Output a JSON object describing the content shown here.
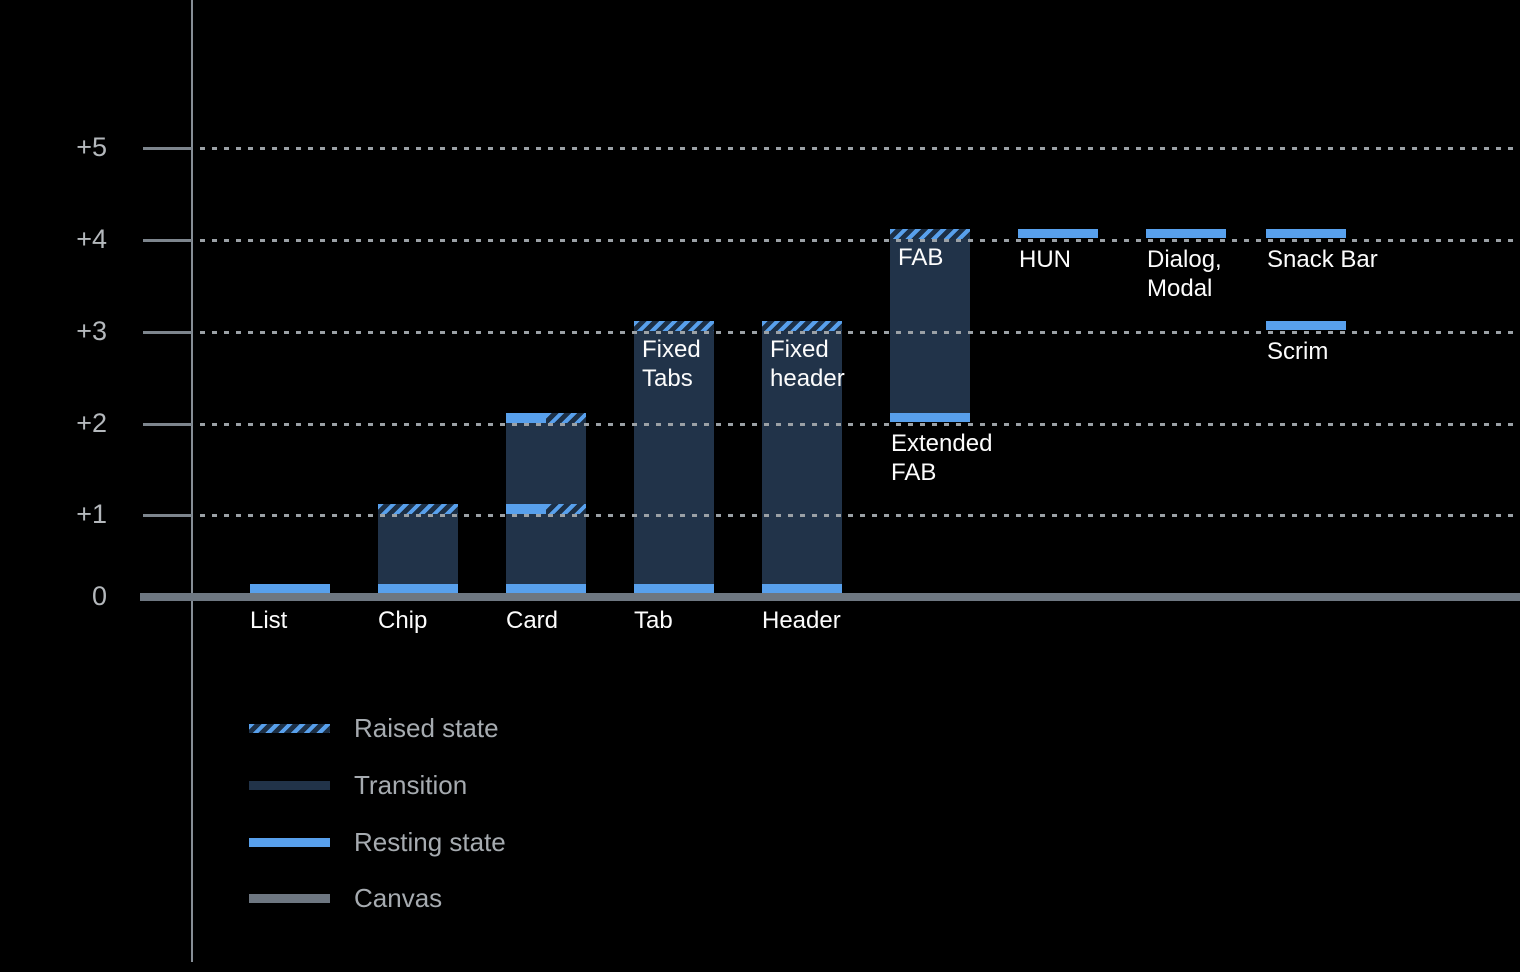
{
  "colors": {
    "background": "#000000",
    "resting": "#58a0ec",
    "transition": "#213349",
    "hatch_dark": "#1c2f45",
    "canvas": "#6e7781",
    "gridline": "#9ba1a6",
    "axis_line": "#868e96",
    "tick": "#7d858d",
    "axis_label_text": "#b4b8bc",
    "legend_text": "#a6abb0",
    "bar_label_text": "#fcfcfc"
  },
  "chart_data": {
    "type": "bar",
    "y_axis": {
      "tick_labels": [
        "+5",
        "+4",
        "+3",
        "+2",
        "+1",
        "0"
      ],
      "levels": [
        5,
        4,
        3,
        2,
        1,
        0
      ],
      "range": [
        0,
        5.6
      ],
      "gridlines": "dotted-horizontal",
      "baseline_style": "solid-canvas-line"
    },
    "legend": {
      "position": "bottom-left",
      "entries": [
        {
          "key": "raised",
          "label": "Raised state"
        },
        {
          "key": "transition",
          "label": "Transition"
        },
        {
          "key": "resting",
          "label": "Resting state"
        },
        {
          "key": "canvas",
          "label": "Canvas"
        }
      ]
    },
    "components": [
      {
        "name": "List",
        "column": 0,
        "resting_levels": [
          0
        ],
        "raised_level": null,
        "parts": [
          [
            "rest-ground"
          ]
        ],
        "labels": [
          {
            "text": "List",
            "placement": "axis"
          }
        ]
      },
      {
        "name": "Chip",
        "column": 1,
        "resting_levels": [
          0
        ],
        "raised_level": 1,
        "parts": [
          [
            "hatch",
            1
          ],
          [
            "dark",
            1,
            0
          ],
          [
            "rest-ground"
          ]
        ],
        "labels": [
          {
            "text": "Chip",
            "placement": "axis"
          }
        ]
      },
      {
        "name": "Card",
        "column": 2,
        "resting_levels": [
          0,
          1,
          2
        ],
        "raised_level": 2,
        "parts": [
          [
            "half",
            2
          ],
          [
            "dark",
            2,
            1
          ],
          [
            "half",
            1
          ],
          [
            "dark",
            1,
            0
          ],
          [
            "rest-ground"
          ]
        ],
        "labels": [
          {
            "text": "Card",
            "placement": "axis"
          }
        ]
      },
      {
        "name": "Tab",
        "column": 3,
        "resting_levels": [
          0
        ],
        "raised_level": 3,
        "parts": [
          [
            "hatch",
            3
          ],
          [
            "dark",
            3,
            0
          ],
          [
            "rest-ground"
          ]
        ],
        "labels": [
          {
            "text": "Tab",
            "placement": "axis"
          },
          {
            "text": "Fixed\nTabs",
            "placement": "inside",
            "level": 3
          }
        ]
      },
      {
        "name": "Header",
        "column": 4,
        "resting_levels": [
          0
        ],
        "raised_level": 3,
        "parts": [
          [
            "hatch",
            3
          ],
          [
            "dark",
            3,
            0
          ],
          [
            "rest-ground"
          ]
        ],
        "labels": [
          {
            "text": "Header",
            "placement": "axis"
          },
          {
            "text": "Fixed\nheader",
            "placement": "inside",
            "level": 3
          }
        ]
      },
      {
        "name": "Extended FAB",
        "column": 5,
        "resting_levels": [
          2
        ],
        "raised_level": 4,
        "parts": [
          [
            "hatch",
            4
          ],
          [
            "dark",
            4,
            2
          ],
          [
            "rest",
            2
          ]
        ],
        "labels": [
          {
            "text": "FAB",
            "placement": "inside",
            "level": 4
          },
          {
            "text": "Extended\nFAB",
            "placement": "below",
            "level": 2
          }
        ]
      },
      {
        "name": "HUN",
        "column": 6,
        "resting_levels": [
          4
        ],
        "raised_level": null,
        "parts": [
          [
            "rest",
            4
          ]
        ],
        "labels": [
          {
            "text": "HUN",
            "placement": "below",
            "level": 4
          }
        ]
      },
      {
        "name": "Dialog, Modal",
        "column": 7,
        "resting_levels": [
          4
        ],
        "raised_level": null,
        "parts": [
          [
            "rest",
            4
          ]
        ],
        "labels": [
          {
            "text": "Dialog,\nModal",
            "placement": "below",
            "level": 4
          }
        ]
      },
      {
        "name": "Snack Bar",
        "column": 8,
        "resting_levels": [
          4
        ],
        "raised_level": null,
        "parts": [
          [
            "rest",
            4
          ]
        ],
        "labels": [
          {
            "text": "Snack Bar",
            "placement": "below",
            "level": 4
          }
        ]
      },
      {
        "name": "Scrim",
        "column": 8,
        "resting_levels": [
          3
        ],
        "raised_level": null,
        "parts": [
          [
            "rest",
            3
          ]
        ],
        "labels": [
          {
            "text": "Scrim",
            "placement": "below",
            "level": 3
          }
        ]
      }
    ]
  }
}
